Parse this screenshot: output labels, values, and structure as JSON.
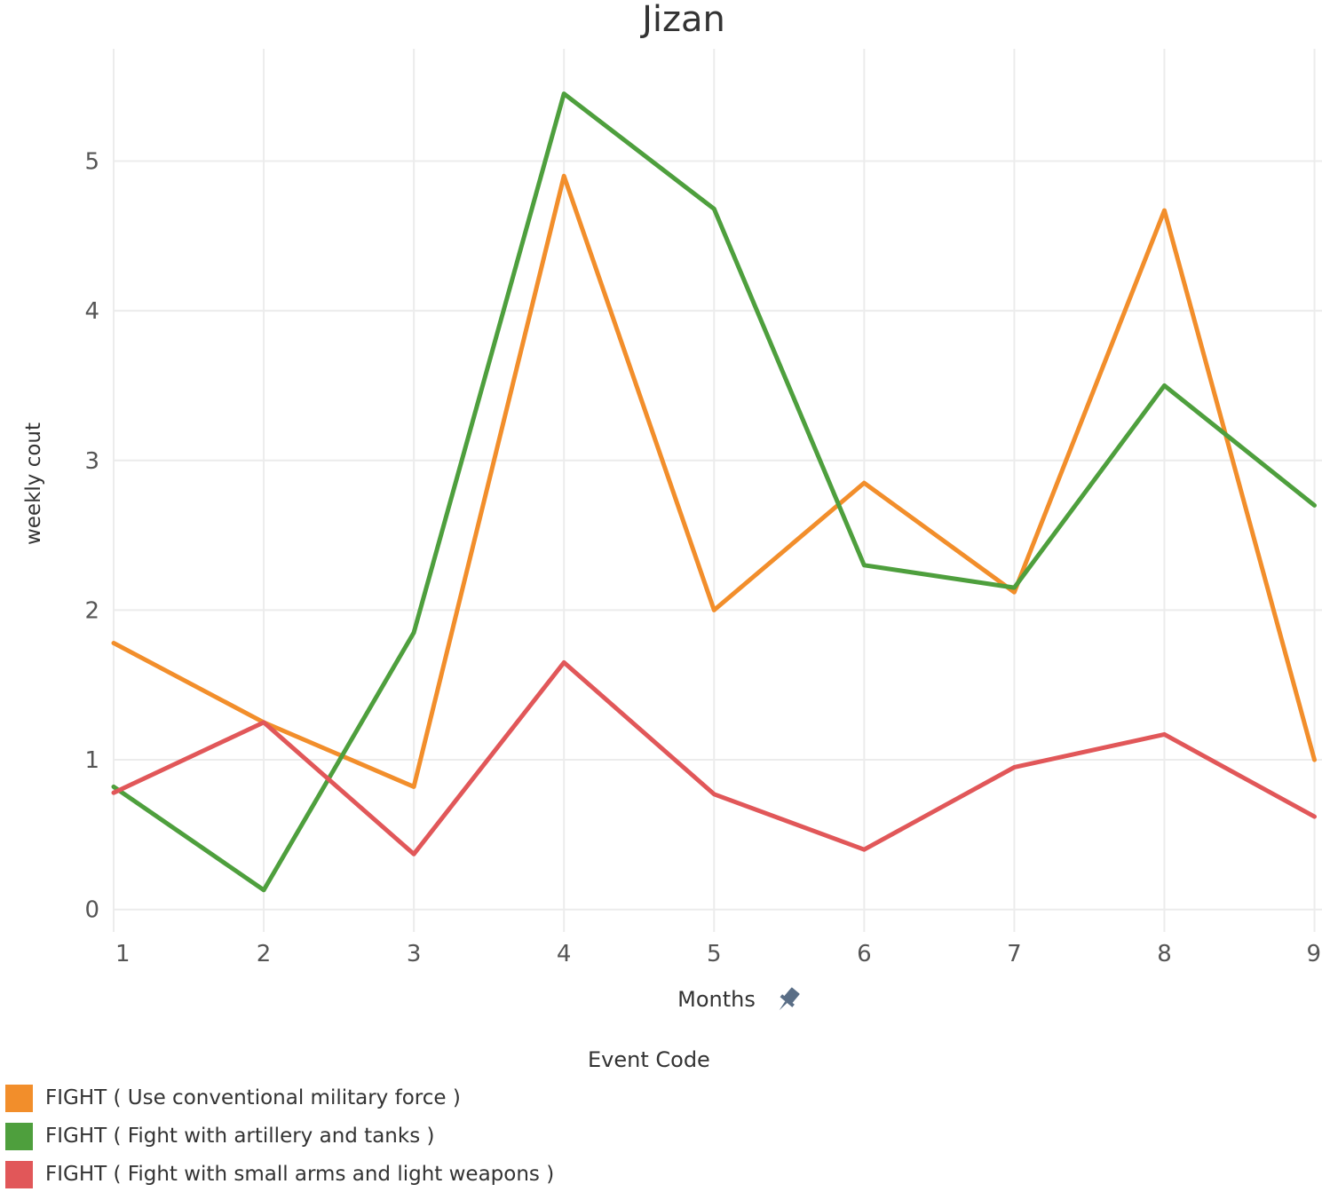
{
  "chart_data": {
    "type": "line",
    "title": "Jizan",
    "xlabel": "Months",
    "ylabel": "weekly cout",
    "x": [
      1,
      2,
      3,
      4,
      5,
      6,
      7,
      8,
      9
    ],
    "x_tick_labels": [
      "1",
      "2",
      "3",
      "4",
      "5",
      "6",
      "7",
      "8",
      "9"
    ],
    "y_ticks": [
      0,
      1,
      2,
      3,
      4,
      5
    ],
    "y_tick_labels": [
      "0",
      "1",
      "2",
      "3",
      "4",
      "5"
    ],
    "xlim": [
      1,
      9.05
    ],
    "ylim": [
      -0.15,
      5.75
    ],
    "grid": true,
    "legend_title": "Event Code",
    "legend_position": "bottom-left",
    "series": [
      {
        "name": "FIGHT ( Use conventional military force )",
        "color": "#f28e2b",
        "values": [
          1.78,
          1.25,
          0.82,
          4.9,
          2.0,
          2.85,
          2.12,
          4.67,
          1.0
        ]
      },
      {
        "name": "FIGHT ( Fight with artillery and tanks )",
        "color": "#4e9f3d",
        "values": [
          0.82,
          0.13,
          1.85,
          5.45,
          4.68,
          2.3,
          2.15,
          3.5,
          2.7
        ]
      },
      {
        "name": "FIGHT ( Fight with small arms and light weapons )",
        "color": "#e15759",
        "values": [
          0.78,
          1.25,
          0.37,
          1.65,
          0.77,
          0.4,
          0.95,
          1.17,
          0.62
        ]
      }
    ]
  }
}
